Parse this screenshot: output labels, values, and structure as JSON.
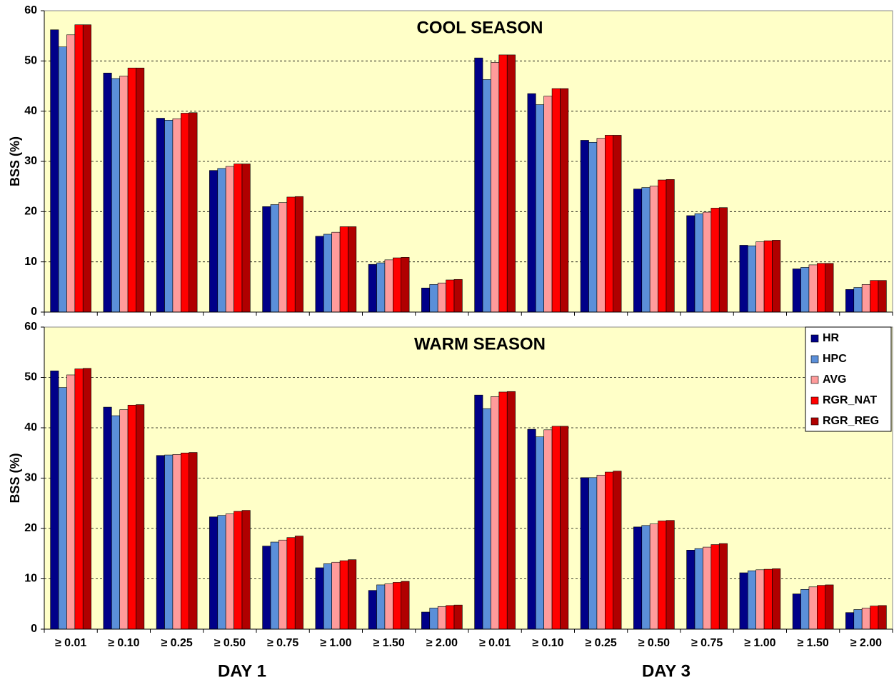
{
  "chart_data": [
    {
      "type": "bar",
      "title": "COOL SEASON",
      "ylabel": "BSS (%)",
      "ylim": [
        0,
        60
      ],
      "yticks": [
        0,
        10,
        20,
        30,
        40,
        50,
        60
      ],
      "grid": true,
      "series": [
        {
          "color": "#000088",
          "values": [
            56.2,
            47.6,
            38.6,
            28.2,
            21.0,
            15.1,
            9.5,
            4.8,
            50.6,
            43.5,
            34.2,
            24.5,
            19.2,
            13.3,
            8.6,
            4.5
          ]
        },
        {
          "color": "#5b8fd9",
          "values": [
            52.8,
            46.5,
            38.2,
            28.6,
            21.4,
            15.5,
            9.8,
            5.5,
            46.3,
            41.3,
            33.8,
            24.8,
            19.6,
            13.2,
            8.9,
            4.9
          ]
        },
        {
          "color": "#ff9b9b",
          "values": [
            55.2,
            47.0,
            38.5,
            29.0,
            21.8,
            15.9,
            10.4,
            5.8,
            49.7,
            43.0,
            34.6,
            25.1,
            19.9,
            14.0,
            9.4,
            5.5
          ]
        },
        {
          "color": "#ff0000",
          "values": [
            57.2,
            48.6,
            39.6,
            29.5,
            22.9,
            17.0,
            10.8,
            6.4,
            51.2,
            44.5,
            35.2,
            26.3,
            20.7,
            14.2,
            9.7,
            6.3
          ]
        },
        {
          "color": "#b00000",
          "values": [
            57.2,
            48.6,
            39.7,
            29.5,
            23.0,
            17.0,
            10.9,
            6.5,
            51.2,
            44.5,
            35.2,
            26.4,
            20.8,
            14.3,
            9.7,
            6.3
          ]
        }
      ]
    },
    {
      "type": "bar",
      "title": "WARM SEASON",
      "ylabel": "BSS (%)",
      "categories": [
        "≥ 0.01",
        "≥ 0.10",
        "≥ 0.25",
        "≥ 0.50",
        "≥ 0.75",
        "≥ 1.00",
        "≥ 1.50",
        "≥ 2.00",
        "≥ 0.01",
        "≥ 0.10",
        "≥ 0.25",
        "≥ 0.50",
        "≥ 0.75",
        "≥ 1.00",
        "≥ 1.50",
        "≥ 2.00"
      ],
      "groups": [
        "DAY 1",
        "DAY 3"
      ],
      "ylim": [
        0,
        60
      ],
      "yticks": [
        0,
        10,
        20,
        30,
        40,
        50,
        60
      ],
      "grid": true,
      "legend": "upper right",
      "series": [
        {
          "name": "HR",
          "color": "#000088",
          "values": [
            51.3,
            44.1,
            34.5,
            22.3,
            16.5,
            12.2,
            7.7,
            3.4,
            46.5,
            39.7,
            30.1,
            20.3,
            15.7,
            11.2,
            7.0,
            3.3
          ]
        },
        {
          "name": "HPC",
          "color": "#5b8fd9",
          "values": [
            48.0,
            42.4,
            34.6,
            22.6,
            17.3,
            13.0,
            8.8,
            4.2,
            43.8,
            38.2,
            30.1,
            20.6,
            16.0,
            11.6,
            7.9,
            3.9
          ]
        },
        {
          "name": "AVG",
          "color": "#ff9b9b",
          "values": [
            50.5,
            43.6,
            34.7,
            22.9,
            17.7,
            13.3,
            9.0,
            4.5,
            46.2,
            39.6,
            30.6,
            20.9,
            16.3,
            11.8,
            8.4,
            4.2
          ]
        },
        {
          "name": "RGR_NAT",
          "color": "#ff0000",
          "values": [
            51.7,
            44.5,
            35.0,
            23.4,
            18.2,
            13.6,
            9.3,
            4.7,
            47.1,
            40.3,
            31.2,
            21.5,
            16.8,
            11.9,
            8.7,
            4.6
          ]
        },
        {
          "name": "RGR_REG",
          "color": "#b00000",
          "values": [
            51.8,
            44.6,
            35.1,
            23.6,
            18.5,
            13.8,
            9.5,
            4.8,
            47.2,
            40.3,
            31.4,
            21.6,
            17.0,
            12.0,
            8.8,
            4.7
          ]
        }
      ]
    }
  ]
}
